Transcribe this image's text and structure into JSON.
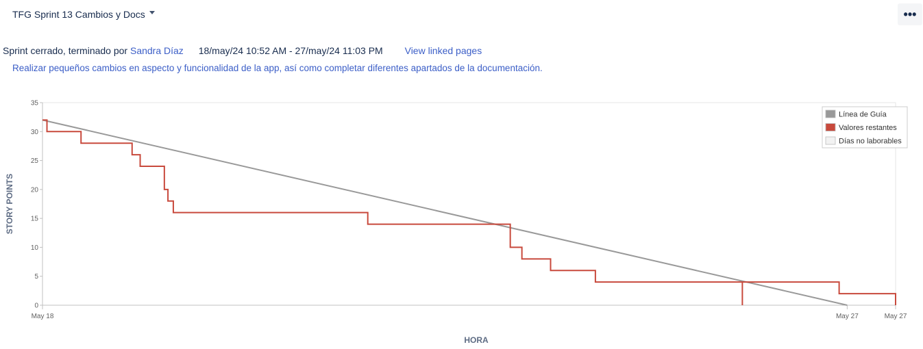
{
  "header": {
    "sprint_name": "TFG Sprint 13 Cambios y Docs",
    "more_label": "•••"
  },
  "sprint": {
    "status_prefix": "Sprint cerrado, terminado por",
    "owner": "Sandra Díaz",
    "dates": "18/may/24 10:52 AM - 27/may/24 11:03 PM",
    "linked_pages": "View linked pages",
    "goal": "Realizar pequeños cambios en aspecto y funcionalidad de la app, así como completar diferentes apartados de la documentación."
  },
  "colors": {
    "guide": "#999999",
    "remaining": "#c8493c",
    "non_working": "#f2f2f2",
    "link": "#3b5ec7"
  },
  "chart_data": {
    "type": "line",
    "xlabel": "HORA",
    "ylabel": "STORY POINTS",
    "ylim": [
      0,
      35
    ],
    "yticks": [
      0,
      5,
      10,
      15,
      20,
      25,
      30,
      35
    ],
    "xlim": [
      0,
      9.52
    ],
    "xticks": [
      {
        "label": "May 18",
        "x": 0
      },
      {
        "label": "May 27",
        "x": 8.98
      },
      {
        "label": "May 27",
        "x": 9.52
      }
    ],
    "grid": false,
    "legend_position": "top-right",
    "legend": [
      "Línea de Guía",
      "Valores restantes",
      "Días no laborables"
    ],
    "series": [
      {
        "name": "Línea de Guía",
        "type": "line",
        "x": [
          0,
          8.98
        ],
        "y": [
          32,
          0
        ]
      },
      {
        "name": "Valores restantes",
        "type": "step",
        "x": [
          0,
          0.05,
          0.43,
          1.0,
          1.09,
          1.36,
          1.4,
          1.46,
          3.63,
          5.22,
          5.35,
          5.67,
          6.17,
          7.81,
          7.81,
          8.89,
          9.52,
          9.52
        ],
        "y": [
          32,
          30,
          28,
          26,
          24,
          20,
          18,
          16,
          14,
          10,
          8,
          6,
          4,
          0,
          4,
          2,
          2,
          0
        ]
      }
    ]
  }
}
